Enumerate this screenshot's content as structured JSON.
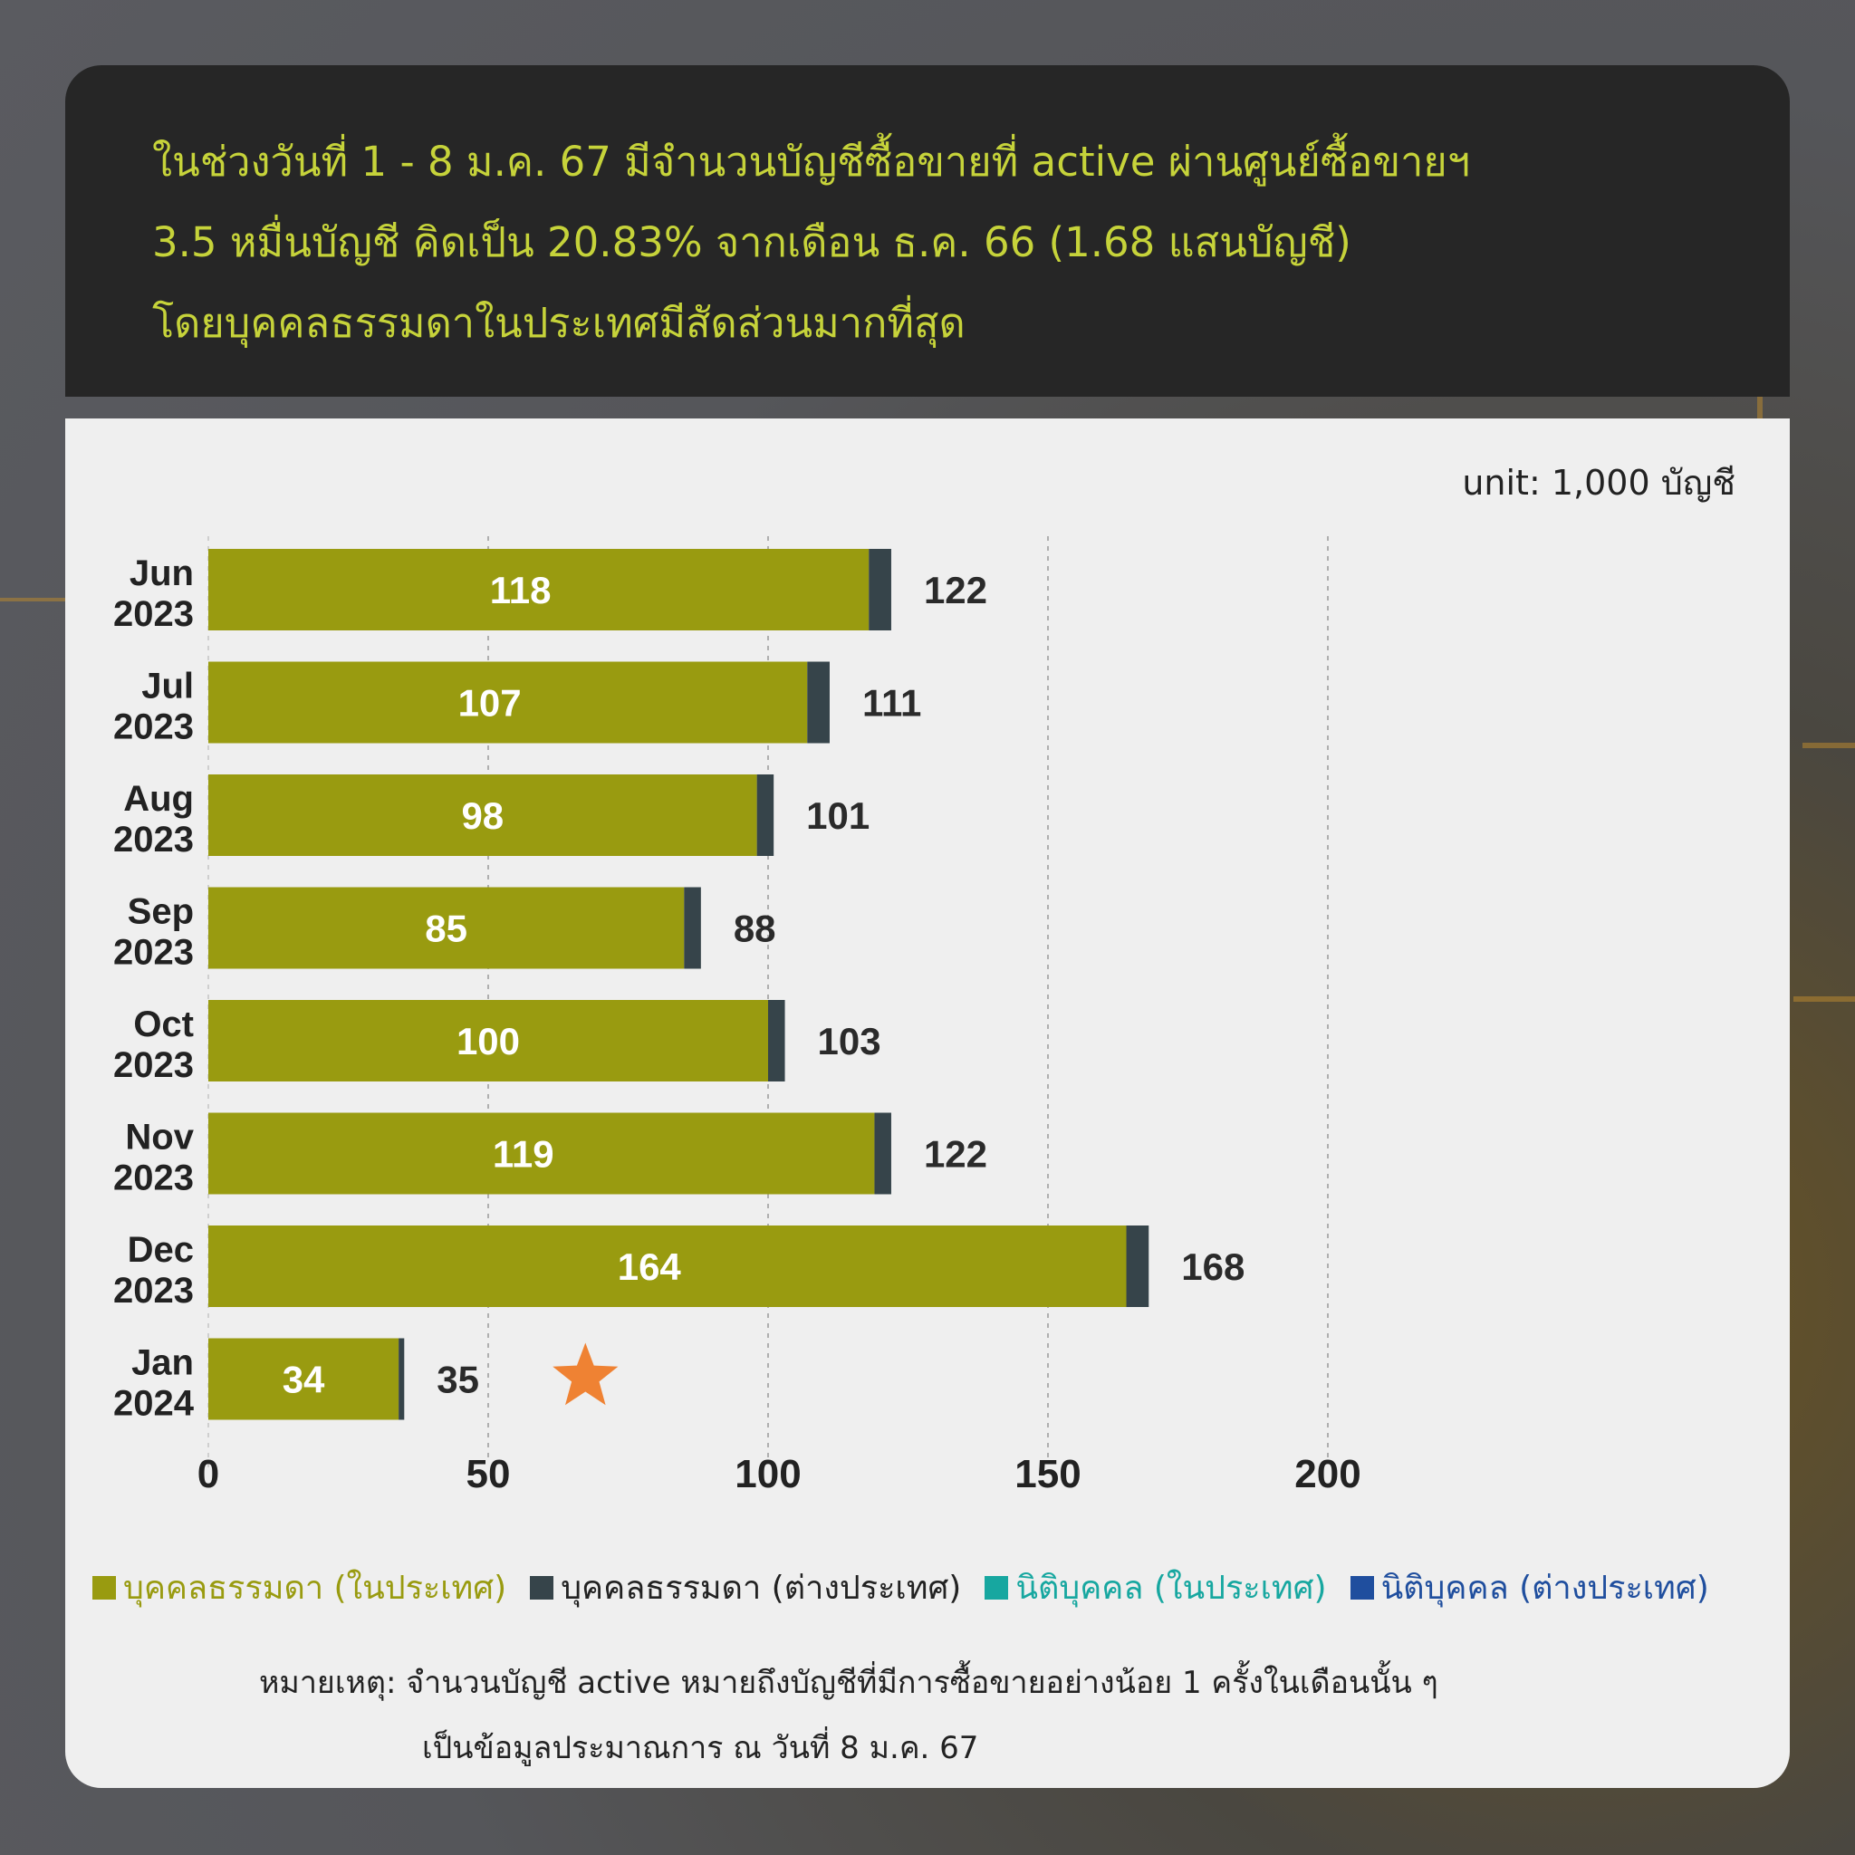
{
  "header": {
    "lines": [
      "ในช่วงวันที่ 1 - 8 ม.ค. 67 มีจำนวนบัญชีซื้อขายที่ active ผ่านศูนย์ซื้อขายฯ",
      "3.5 หมื่นบัญชี คิดเป็น 20.83% จากเดือน ธ.ค. 66 (1.68 แสนบัญชี)",
      "โดยบุคคลธรรมดาในประเทศมีสัดส่วนมากที่สุด"
    ]
  },
  "unit": "unit: 1,000 บัญชี",
  "note": {
    "line1": "หมายเหตุ: จำนวนบัญชี active หมายถึงบัญชีที่มีการซื้อขายอย่างน้อย 1 ครั้งในเดือนนั้น ๆ",
    "line2": "เป็นข้อมูลประมาณการ ณ วันที่ 8 ม.ค. 67"
  },
  "chart_data": {
    "type": "bar",
    "orientation": "horizontal",
    "stacked": true,
    "categories": [
      [
        "Jun",
        "2023"
      ],
      [
        "Jul",
        "2023"
      ],
      [
        "Aug",
        "2023"
      ],
      [
        "Sep",
        "2023"
      ],
      [
        "Oct",
        "2023"
      ],
      [
        "Nov",
        "2023"
      ],
      [
        "Dec",
        "2023"
      ],
      [
        "Jan",
        "2024"
      ]
    ],
    "series": [
      {
        "name": "บุคคลธรรมดา (ในประเทศ)",
        "color": "#999b10",
        "values": [
          118,
          107,
          98,
          85,
          100,
          119,
          164,
          34
        ]
      },
      {
        "name": "บุคคลธรรมดา (ต่างประเทศ)",
        "color": "#36444a",
        "values": [
          4,
          4,
          3,
          3,
          3,
          3,
          4,
          1
        ]
      },
      {
        "name": "นิติบุคคล (ในประเทศ)",
        "color": "#17a7a0",
        "values": [
          0,
          0,
          0,
          0,
          0,
          0,
          0,
          0
        ]
      },
      {
        "name": "นิติบุคคล (ต่างประเทศ)",
        "color": "#1f4e9e",
        "values": [
          0,
          0,
          0,
          0,
          0,
          0,
          0,
          0
        ]
      }
    ],
    "segment_labels": [
      "118",
      "107",
      "98",
      "85",
      "100",
      "119",
      "164",
      "34"
    ],
    "total_labels": [
      "122",
      "111",
      "101",
      "88",
      "103",
      "122",
      "168",
      "35"
    ],
    "totals": [
      122,
      111,
      101,
      88,
      103,
      122,
      168,
      35
    ],
    "xlim": [
      0,
      200
    ],
    "xticks": [
      "0",
      "50",
      "100",
      "150",
      "200"
    ],
    "xtick_values": [
      0,
      50,
      100,
      150,
      200
    ],
    "grid": "vertical dashed",
    "legend_position": "bottom",
    "annotation": {
      "category_index": 7,
      "marker": "star",
      "color": "#ef8233"
    }
  }
}
